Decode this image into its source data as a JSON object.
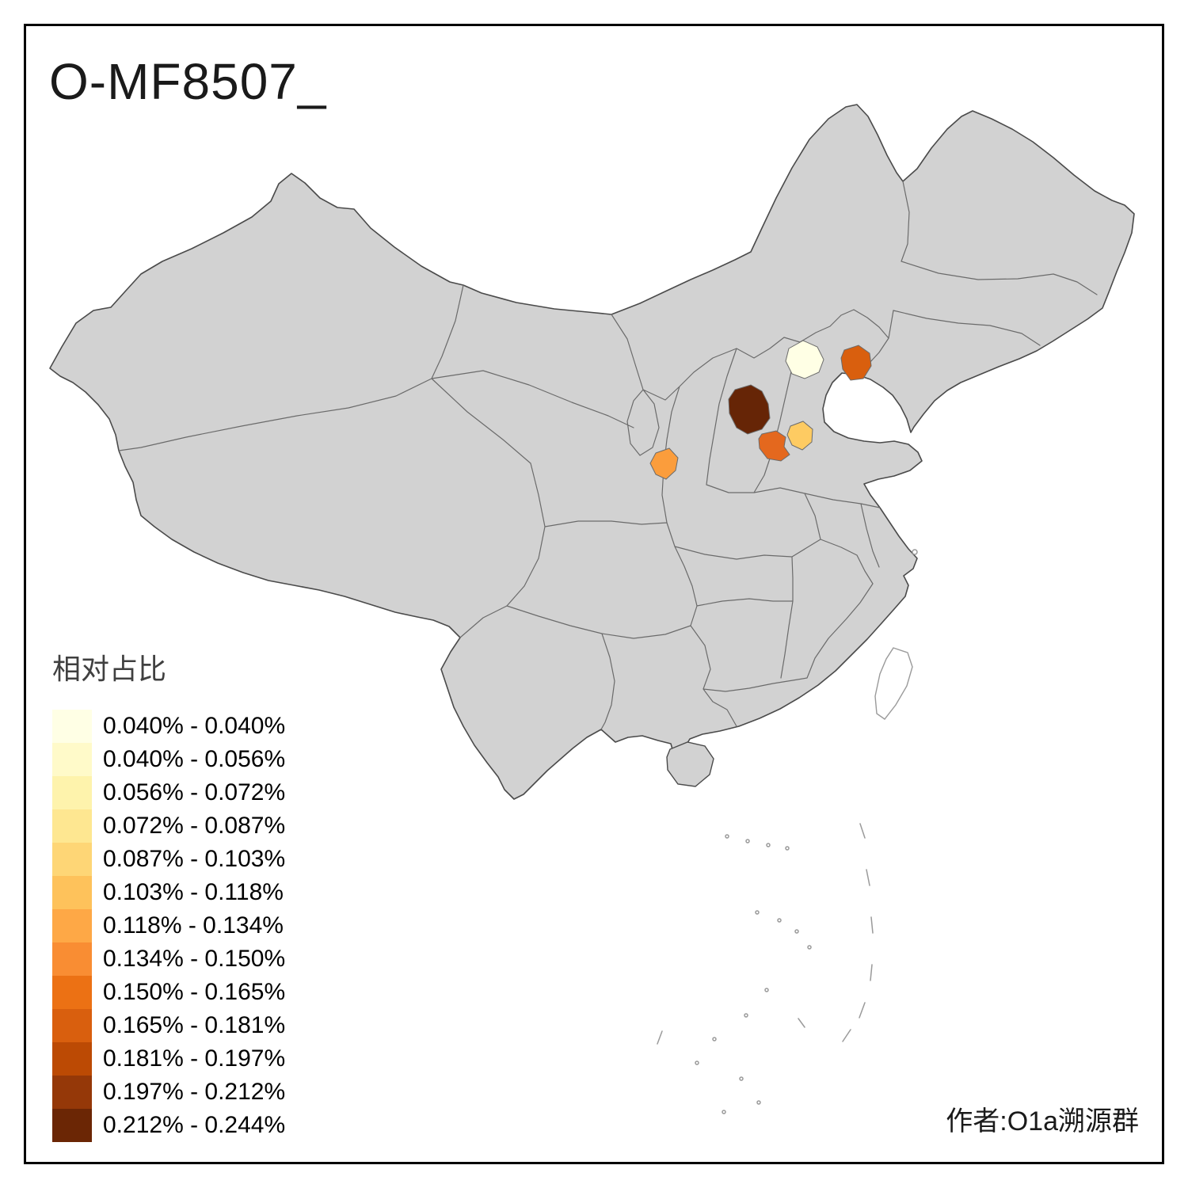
{
  "title": "O-MF8507_",
  "attribution": "作者:O1a溯源群",
  "legend": {
    "title": "相对占比",
    "items": [
      {
        "label": "0.040% - 0.040%",
        "color": "#FFFFE5"
      },
      {
        "label": "0.040% - 0.056%",
        "color": "#FFFAC9"
      },
      {
        "label": "0.056% - 0.072%",
        "color": "#FEF3AC"
      },
      {
        "label": "0.072% - 0.087%",
        "color": "#FEE791"
      },
      {
        "label": "0.087% - 0.103%",
        "color": "#FED676"
      },
      {
        "label": "0.103% - 0.118%",
        "color": "#FEC25B"
      },
      {
        "label": "0.118% - 0.134%",
        "color": "#FEA846"
      },
      {
        "label": "0.134% - 0.150%",
        "color": "#F98D33"
      },
      {
        "label": "0.150% - 0.165%",
        "color": "#EC7114"
      },
      {
        "label": "0.165% - 0.181%",
        "color": "#D95F0E"
      },
      {
        "label": "0.181% - 0.197%",
        "color": "#BC4A04"
      },
      {
        "label": "0.197% - 0.212%",
        "color": "#953808"
      },
      {
        "label": "0.212% - 0.244%",
        "color": "#6B2605"
      }
    ]
  },
  "map": {
    "land_color": "#D2D2D2",
    "border_color": "#6B6B6B",
    "outline_color": "#4A4A4A",
    "island_stroke_color": "#9A9A9A",
    "regions": [
      {
        "color": "#FFFFE5"
      },
      {
        "color": "#D95F0E"
      },
      {
        "color": "#662506"
      },
      {
        "color": "#E4681E"
      },
      {
        "color": "#FECB62"
      },
      {
        "color": "#FB9D3C"
      }
    ]
  }
}
